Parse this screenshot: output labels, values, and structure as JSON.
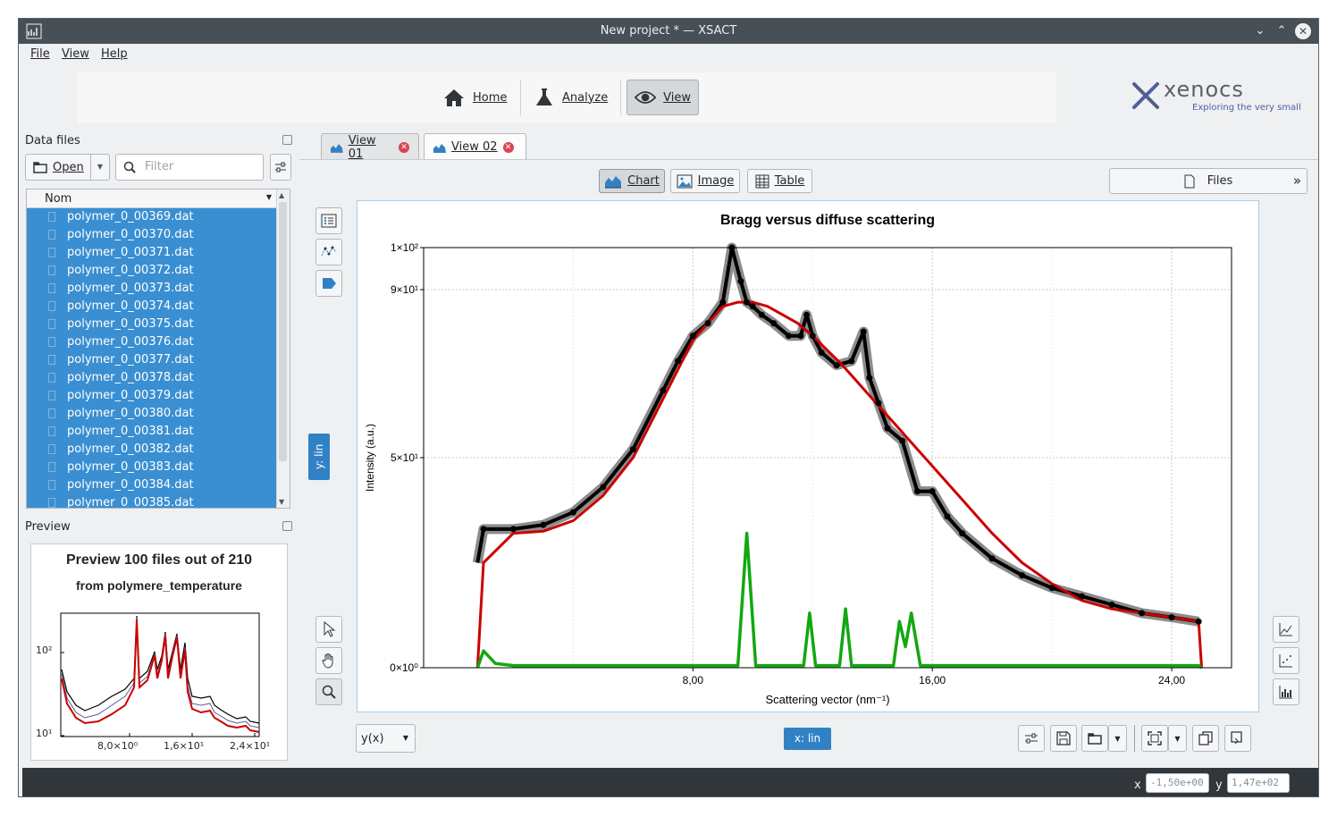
{
  "window": {
    "title": "New project * — XSACT"
  },
  "menu": [
    "File",
    "View",
    "Help"
  ],
  "nav": {
    "home": "Home",
    "analyze": "Analyze",
    "view": "View"
  },
  "brand": {
    "name": "xenocs",
    "tagline": "Exploring the very small"
  },
  "data_files": {
    "title": "Data files",
    "open_label": "Open",
    "filter_placeholder": "Filter",
    "column_header": "Nom",
    "files": [
      "polymer_0_00369.dat",
      "polymer_0_00370.dat",
      "polymer_0_00371.dat",
      "polymer_0_00372.dat",
      "polymer_0_00373.dat",
      "polymer_0_00374.dat",
      "polymer_0_00375.dat",
      "polymer_0_00376.dat",
      "polymer_0_00377.dat",
      "polymer_0_00378.dat",
      "polymer_0_00379.dat",
      "polymer_0_00380.dat",
      "polymer_0_00381.dat",
      "polymer_0_00382.dat",
      "polymer_0_00383.dat",
      "polymer_0_00384.dat",
      "polymer_0_00385.dat"
    ]
  },
  "preview": {
    "title": "Preview",
    "heading": "Preview 100 files out of 210",
    "subheading": "from polymere_temperature",
    "y_ticks": [
      "10²",
      "10¹"
    ],
    "x_ticks": [
      "8,0×10⁰",
      "1,6×10¹",
      "2,4×10¹"
    ]
  },
  "tabs": [
    {
      "label": "View 01"
    },
    {
      "label": "View 02"
    }
  ],
  "view_modes": {
    "chart": "Chart",
    "image": "Image",
    "table": "Table",
    "files": "Files"
  },
  "scale": {
    "y": "y: lin",
    "x": "x: lin"
  },
  "plot_mode": "y(x)",
  "status": {
    "x_label": "x",
    "x_value": "-1,50e+00",
    "y_label": "y",
    "y_value": "1,47e+02"
  },
  "colors": {
    "accent": "#3182c5",
    "selection": "#3a8fd2",
    "red_series": "#cc0000",
    "green_series": "#11a811"
  },
  "chart_data": {
    "type": "line",
    "title": "Bragg versus diffuse scattering",
    "xlabel": "Scattering vector (nm⁻¹)",
    "ylabel": "Intensity (a.u.)",
    "xlim": [
      -1.0,
      26.0
    ],
    "ylim": [
      0,
      100
    ],
    "x_ticks": [
      8,
      16,
      24
    ],
    "x_tick_labels": [
      "8,00",
      "16,00",
      "24,00"
    ],
    "y_ticks": [
      0,
      50,
      90,
      100
    ],
    "y_tick_labels": [
      "0×10⁰",
      "5×10¹",
      "9×10¹",
      "1×10²"
    ],
    "grid": true,
    "series": [
      {
        "style": "black dots with grey error band",
        "x": [
          0.8,
          1.0,
          2,
          3,
          4,
          5,
          6,
          7,
          7.5,
          8,
          8.5,
          9,
          9.3,
          9.6,
          9.8,
          10.0,
          10.3,
          10.7,
          11.2,
          11.6,
          11.8,
          12.0,
          12.3,
          12.8,
          13.3,
          13.7,
          13.9,
          14.2,
          14.5,
          15,
          15.5,
          16,
          16.5,
          17,
          18,
          19,
          20,
          21,
          22,
          23,
          24,
          24.9
        ],
        "y": [
          25,
          33,
          33,
          34,
          37,
          43,
          52,
          66,
          73,
          79,
          82,
          87,
          100,
          92,
          87,
          86,
          84,
          82,
          79,
          79,
          84,
          79,
          75,
          72,
          73,
          80,
          69,
          63,
          57,
          54,
          42,
          42,
          36,
          32,
          26,
          22,
          19,
          17,
          15,
          13,
          12,
          11
        ]
      },
      {
        "style": "red line",
        "x": [
          0.8,
          1.0,
          2,
          3,
          4,
          5,
          6,
          7,
          8,
          8.5,
          9,
          9.5,
          10,
          10.5,
          11,
          11.5,
          12,
          13,
          14,
          15,
          16,
          17,
          18,
          19,
          20,
          21,
          22,
          23,
          24,
          24.9,
          25.0
        ],
        "y": [
          0,
          25,
          32,
          32.5,
          35,
          41,
          50,
          64,
          78,
          82,
          86,
          87,
          87,
          86,
          84,
          82,
          79,
          72,
          64,
          56,
          48,
          40,
          32,
          25,
          20,
          16,
          14,
          13,
          12,
          11,
          0
        ]
      },
      {
        "style": "green line",
        "x": [
          0.8,
          1.0,
          1.4,
          2,
          4,
          6,
          8,
          9.5,
          9.8,
          10.1,
          11,
          11.7,
          11.9,
          12.1,
          12.5,
          12.9,
          13.1,
          13.3,
          14,
          14.7,
          14.9,
          15.1,
          15.3,
          15.6,
          16,
          18,
          20,
          22,
          24,
          24.9,
          25.0
        ],
        "y": [
          0,
          4,
          1,
          0.5,
          0.5,
          0.5,
          0.5,
          0.5,
          32,
          0.5,
          0.5,
          0.5,
          13,
          0.5,
          0.5,
          0.5,
          14,
          0.5,
          0.5,
          0.5,
          11,
          5,
          13,
          0.5,
          0.5,
          0.5,
          0.5,
          0.5,
          0.5,
          0.5,
          0
        ]
      }
    ]
  }
}
